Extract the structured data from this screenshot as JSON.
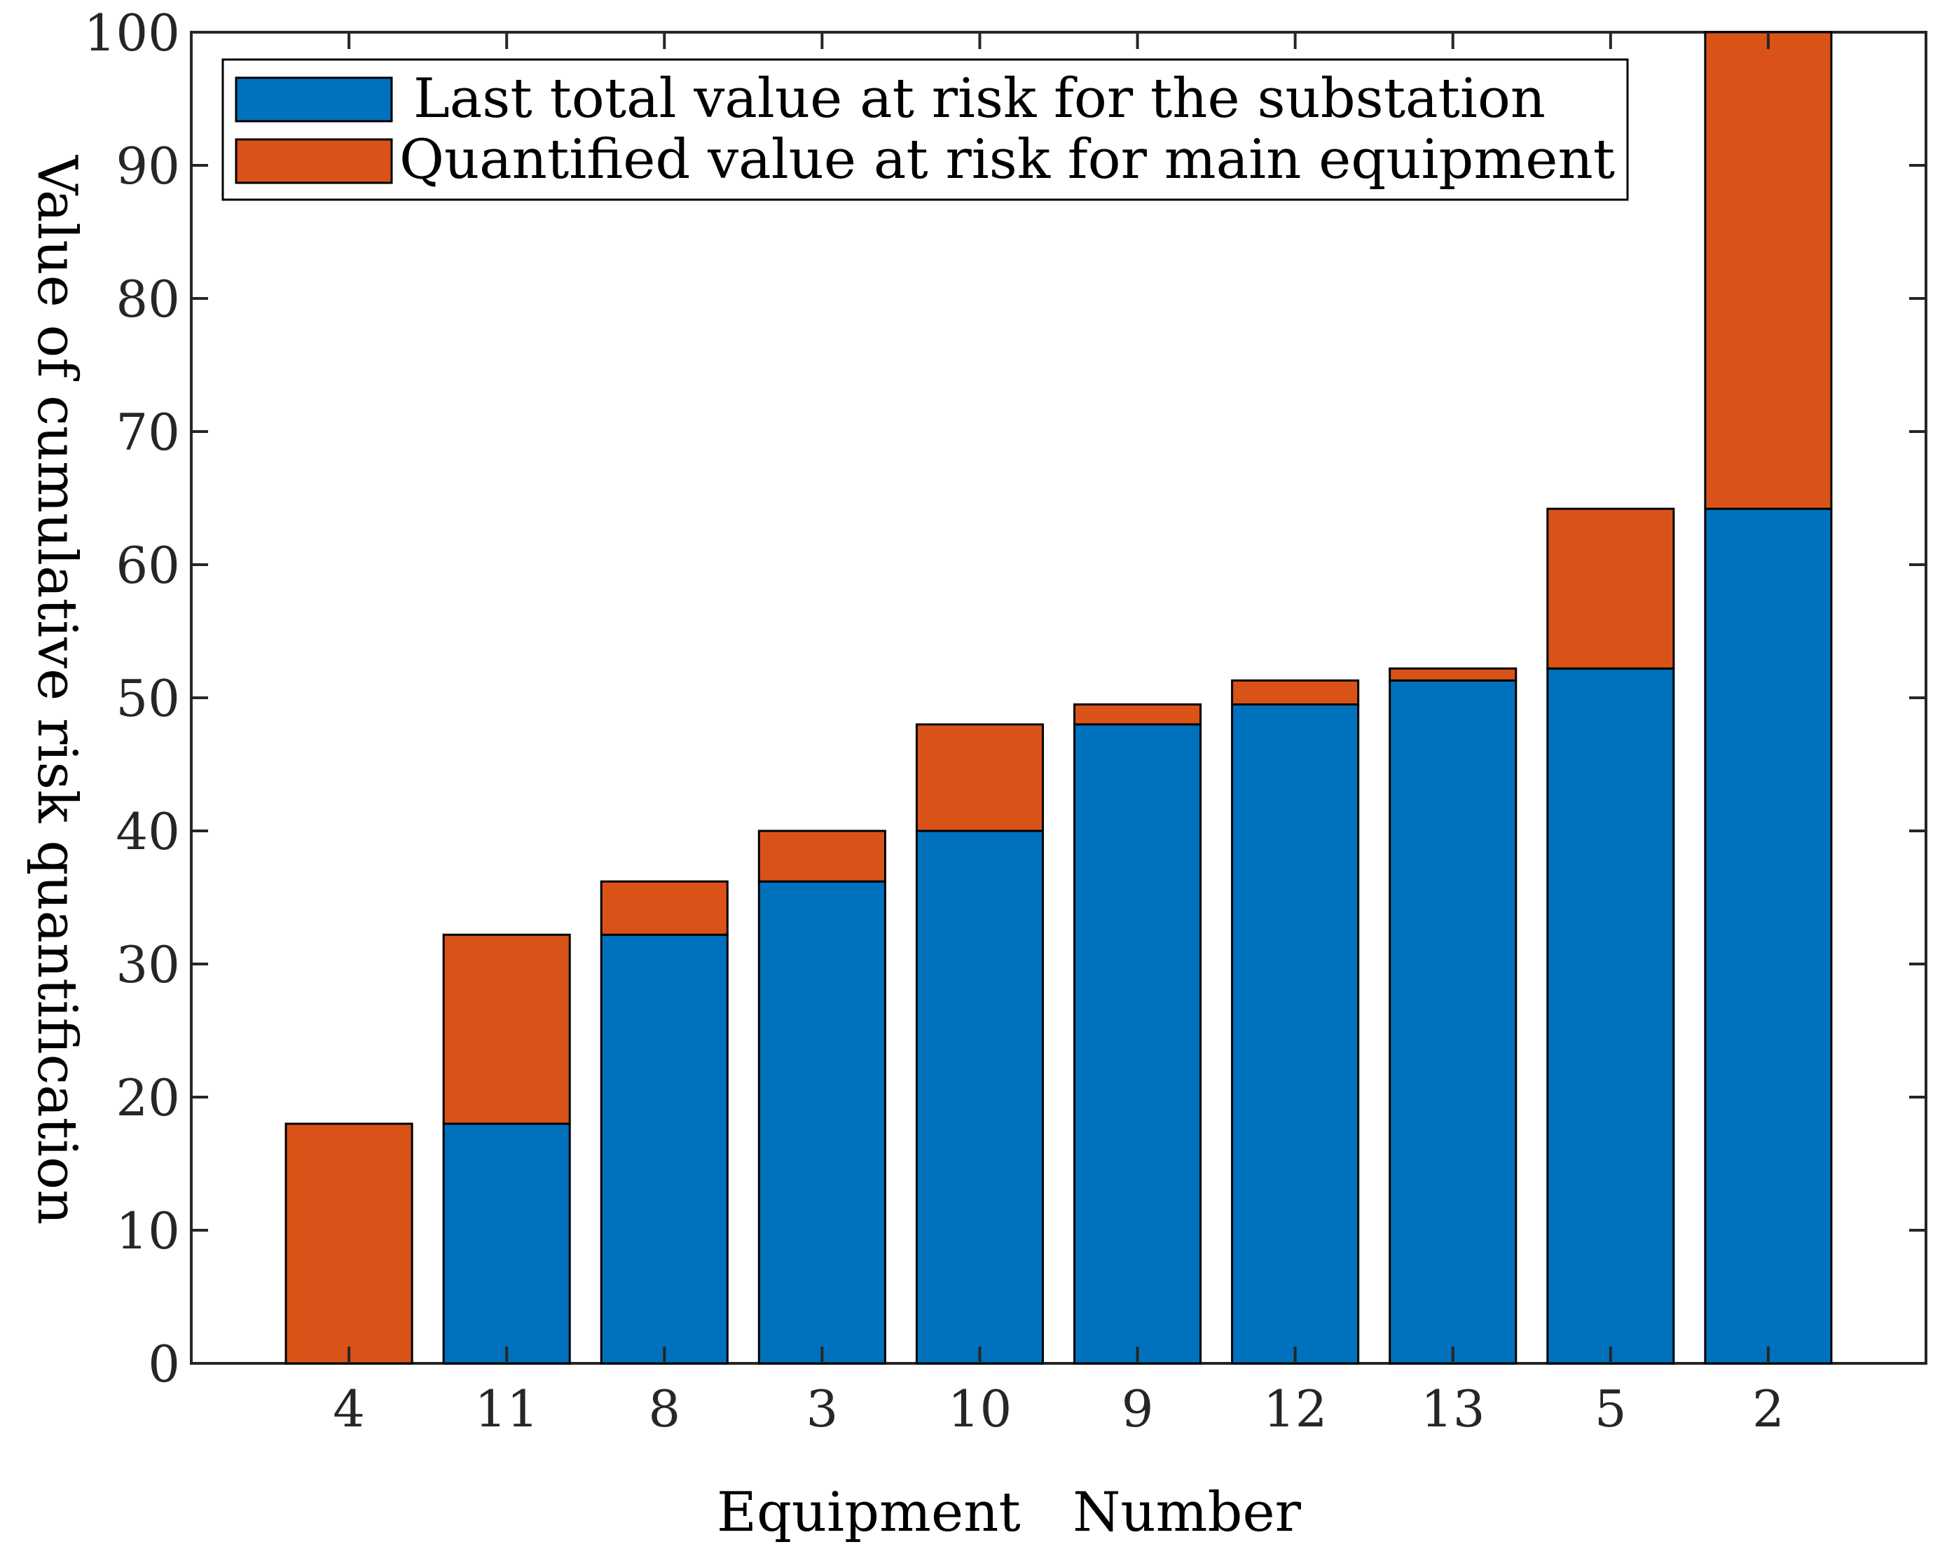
{
  "chart_data": {
    "type": "bar",
    "stacked": true,
    "title": "",
    "xlabel": "Equipment   Number",
    "ylabel": "Value of cumulative risk quantification",
    "xlim": [
      0,
      11
    ],
    "ylim": [
      0,
      100
    ],
    "yticks": [
      0,
      10,
      20,
      30,
      40,
      50,
      60,
      70,
      80,
      90,
      100
    ],
    "ytick_labels": [
      "0",
      "10",
      "20",
      "30",
      "40",
      "50",
      "60",
      "70",
      "80",
      "90",
      "100"
    ],
    "categories": [
      "4",
      "11",
      "8",
      "3",
      "10",
      "9",
      "12",
      "13",
      "5",
      "2"
    ],
    "series": [
      {
        "name": "Last total value at risk for the substation",
        "color": "#0072BD",
        "values": [
          0,
          18,
          32.2,
          36.2,
          40,
          48,
          49.5,
          51.3,
          52.2,
          64.2
        ]
      },
      {
        "name": "Quantified value at risk for main equipment",
        "color": "#D95319",
        "values": [
          18,
          14.2,
          4,
          3.8,
          8,
          1.5,
          1.8,
          0.9,
          12,
          35.8
        ]
      }
    ],
    "legend_position": "top-left",
    "grid": false
  }
}
